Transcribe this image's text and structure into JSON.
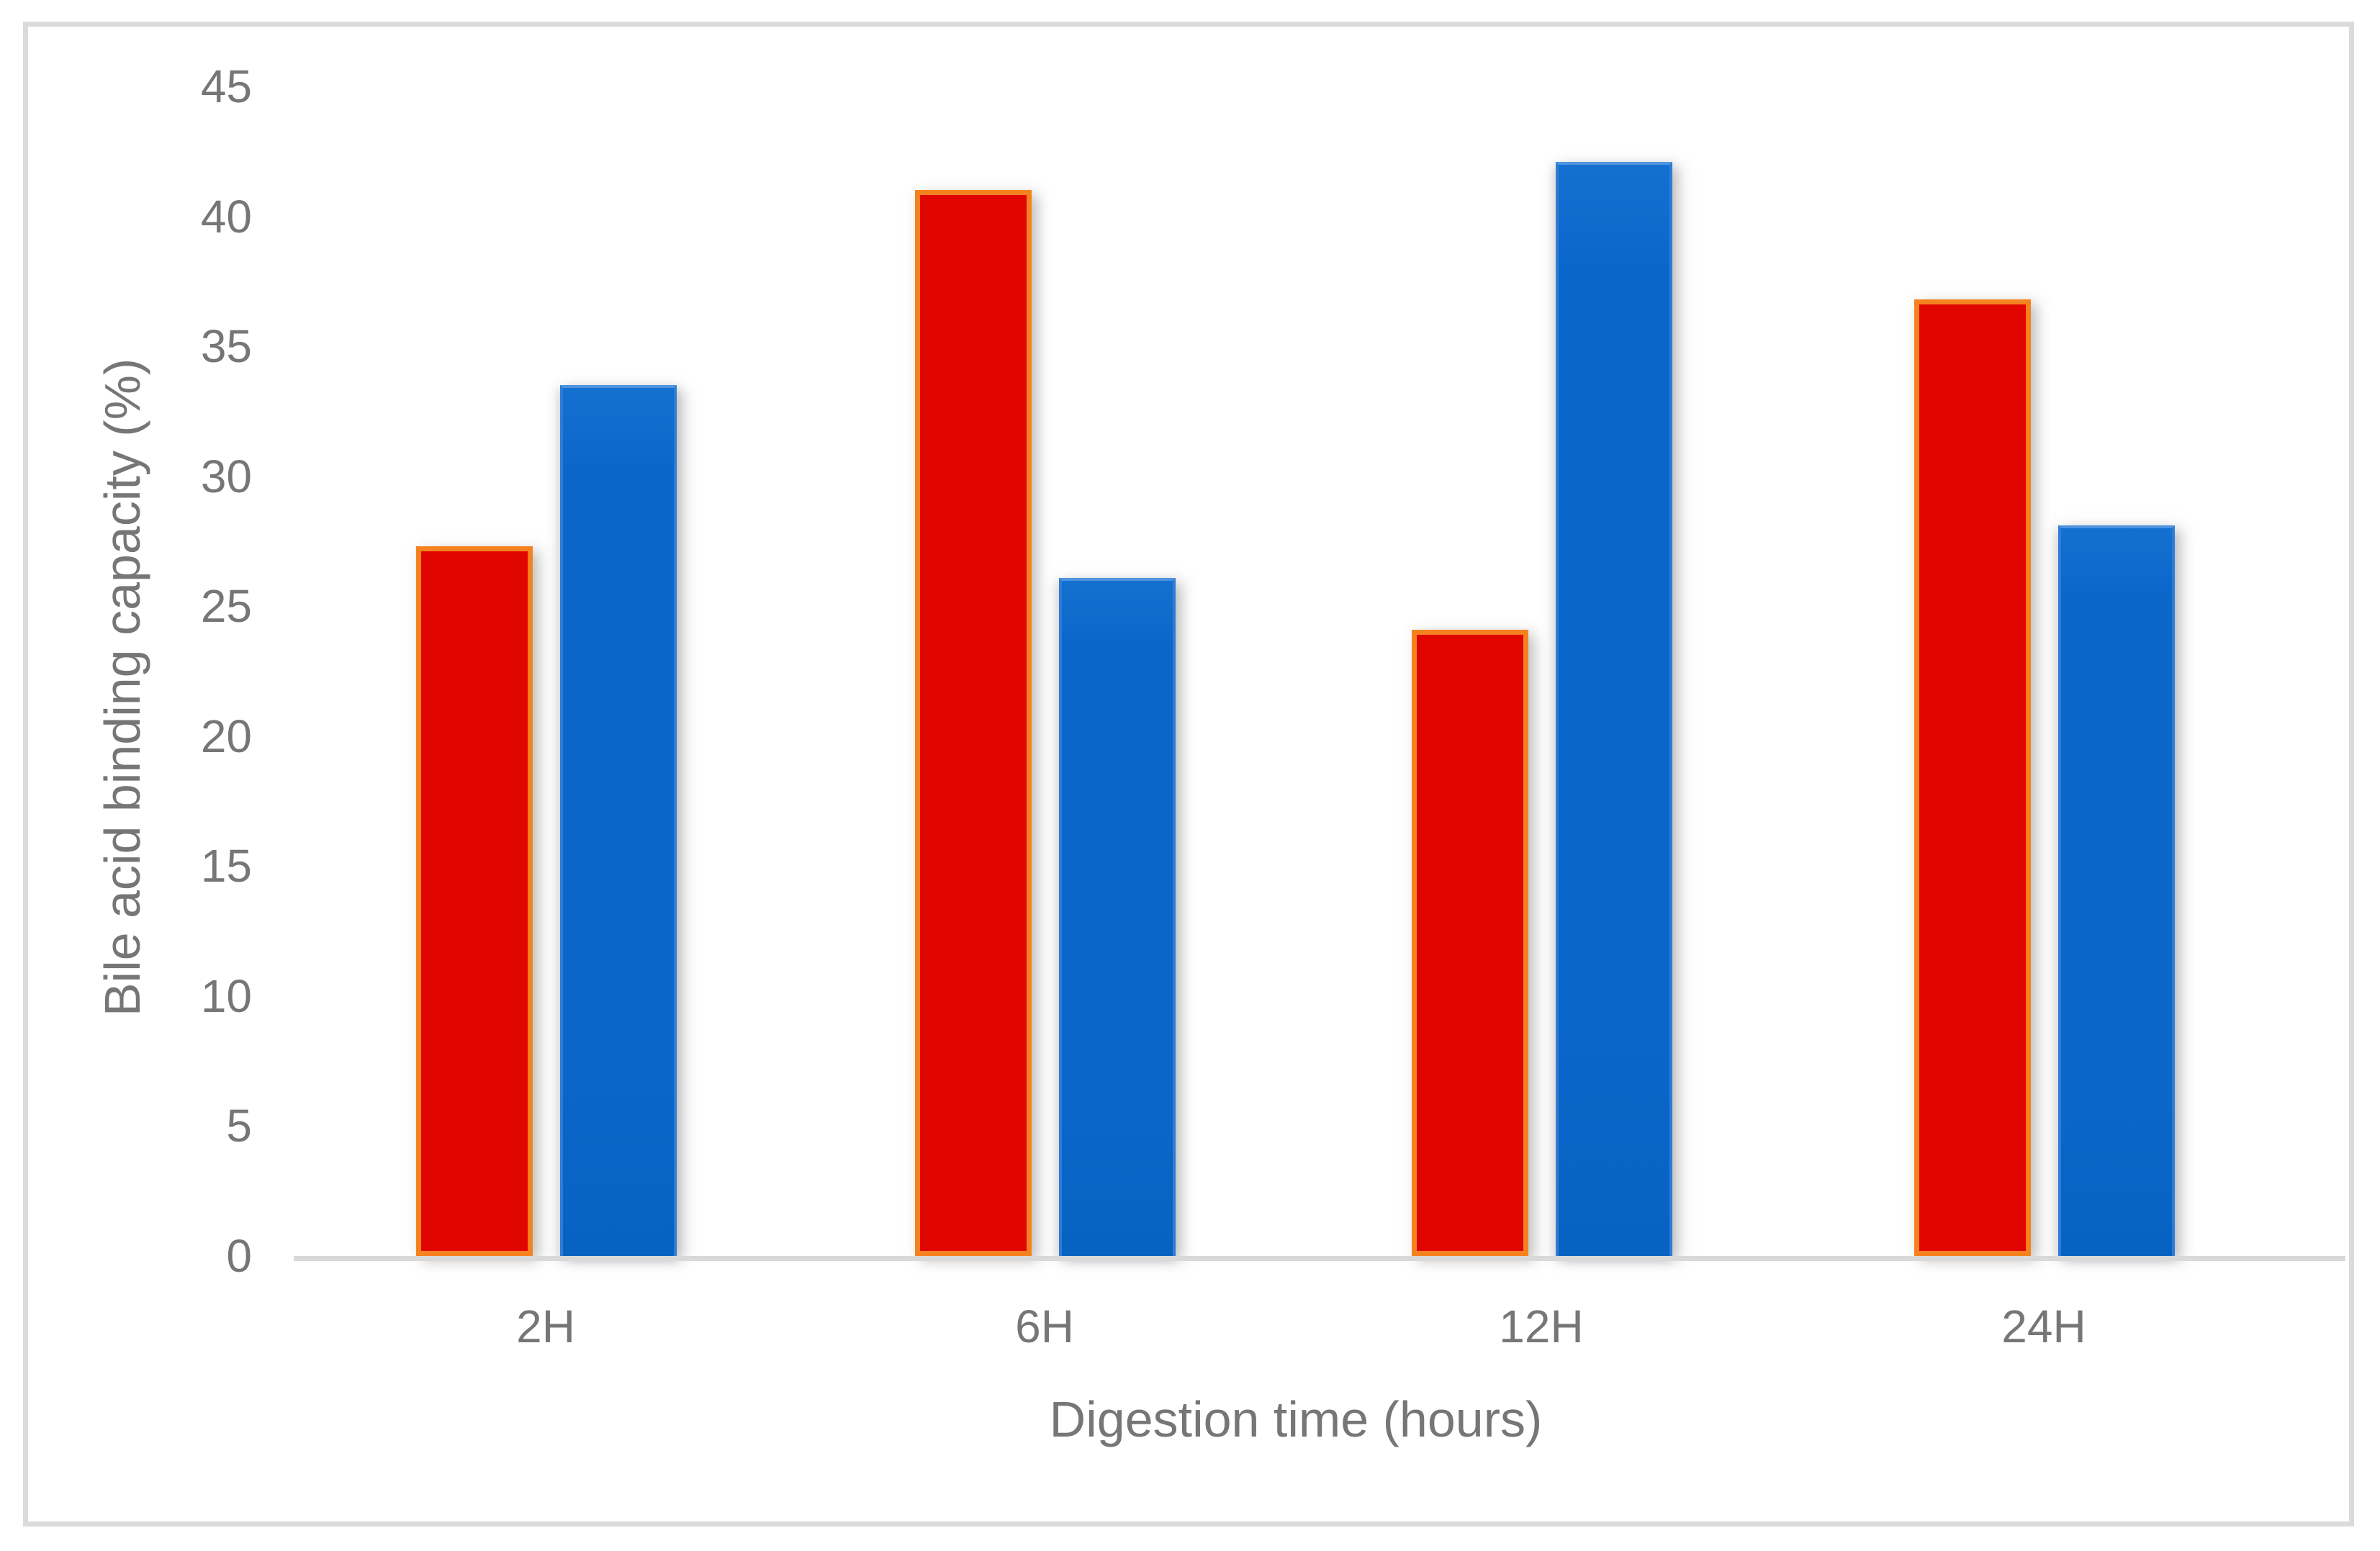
{
  "window": {
    "background_color": "#FFFFFF",
    "frame_border_color": "#DBDBDB"
  },
  "chart_data": {
    "type": "bar",
    "title": "",
    "categories": [
      "2H",
      "6H",
      "12H",
      "24H"
    ],
    "series": [
      {
        "name": "red-series",
        "color": "#E10500",
        "border_color": "#F5821F",
        "values": [
          27.3,
          41.0,
          24.1,
          36.8
        ]
      },
      {
        "name": "blue-series",
        "color": "#0A66C9",
        "border_color": "#2E7CD6",
        "values": [
          33.5,
          26.1,
          42.1,
          28.1
        ]
      }
    ],
    "xlabel": "Digestion time (hours)",
    "ylabel": "Bile acid binding capacity (%)",
    "ylim": [
      0,
      45
    ],
    "yticks": [
      0,
      5,
      10,
      15,
      20,
      25,
      30,
      35,
      40,
      45
    ],
    "ytick_step": 5,
    "grid": false,
    "legend": "none",
    "text_color": "#767676",
    "axis_line_color": "#D9D9D9"
  }
}
